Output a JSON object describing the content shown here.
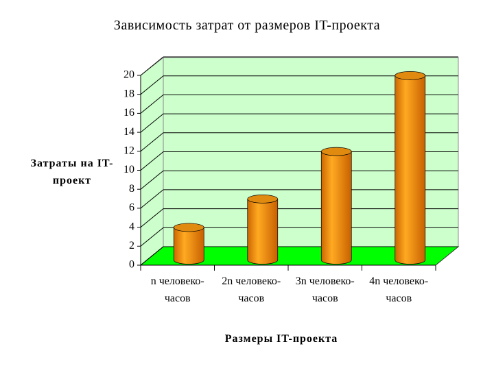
{
  "chart_data": {
    "type": "bar",
    "title": "Зависимость затрат от размеров IT-проекта",
    "x_label": "Размеры IT-проекта",
    "y_label": "Затраты на IT-проект",
    "categories": [
      "n человеко-часов",
      "2n человеко-часов",
      "3n человеко-часов",
      "4n человеко-часов"
    ],
    "values": [
      3,
      6,
      11,
      19
    ],
    "color": "#ff9900",
    "ylim": [
      0,
      20
    ],
    "yticks": [
      0,
      2,
      4,
      6,
      8,
      10,
      12,
      14,
      16,
      18,
      20
    ],
    "grid": true
  }
}
